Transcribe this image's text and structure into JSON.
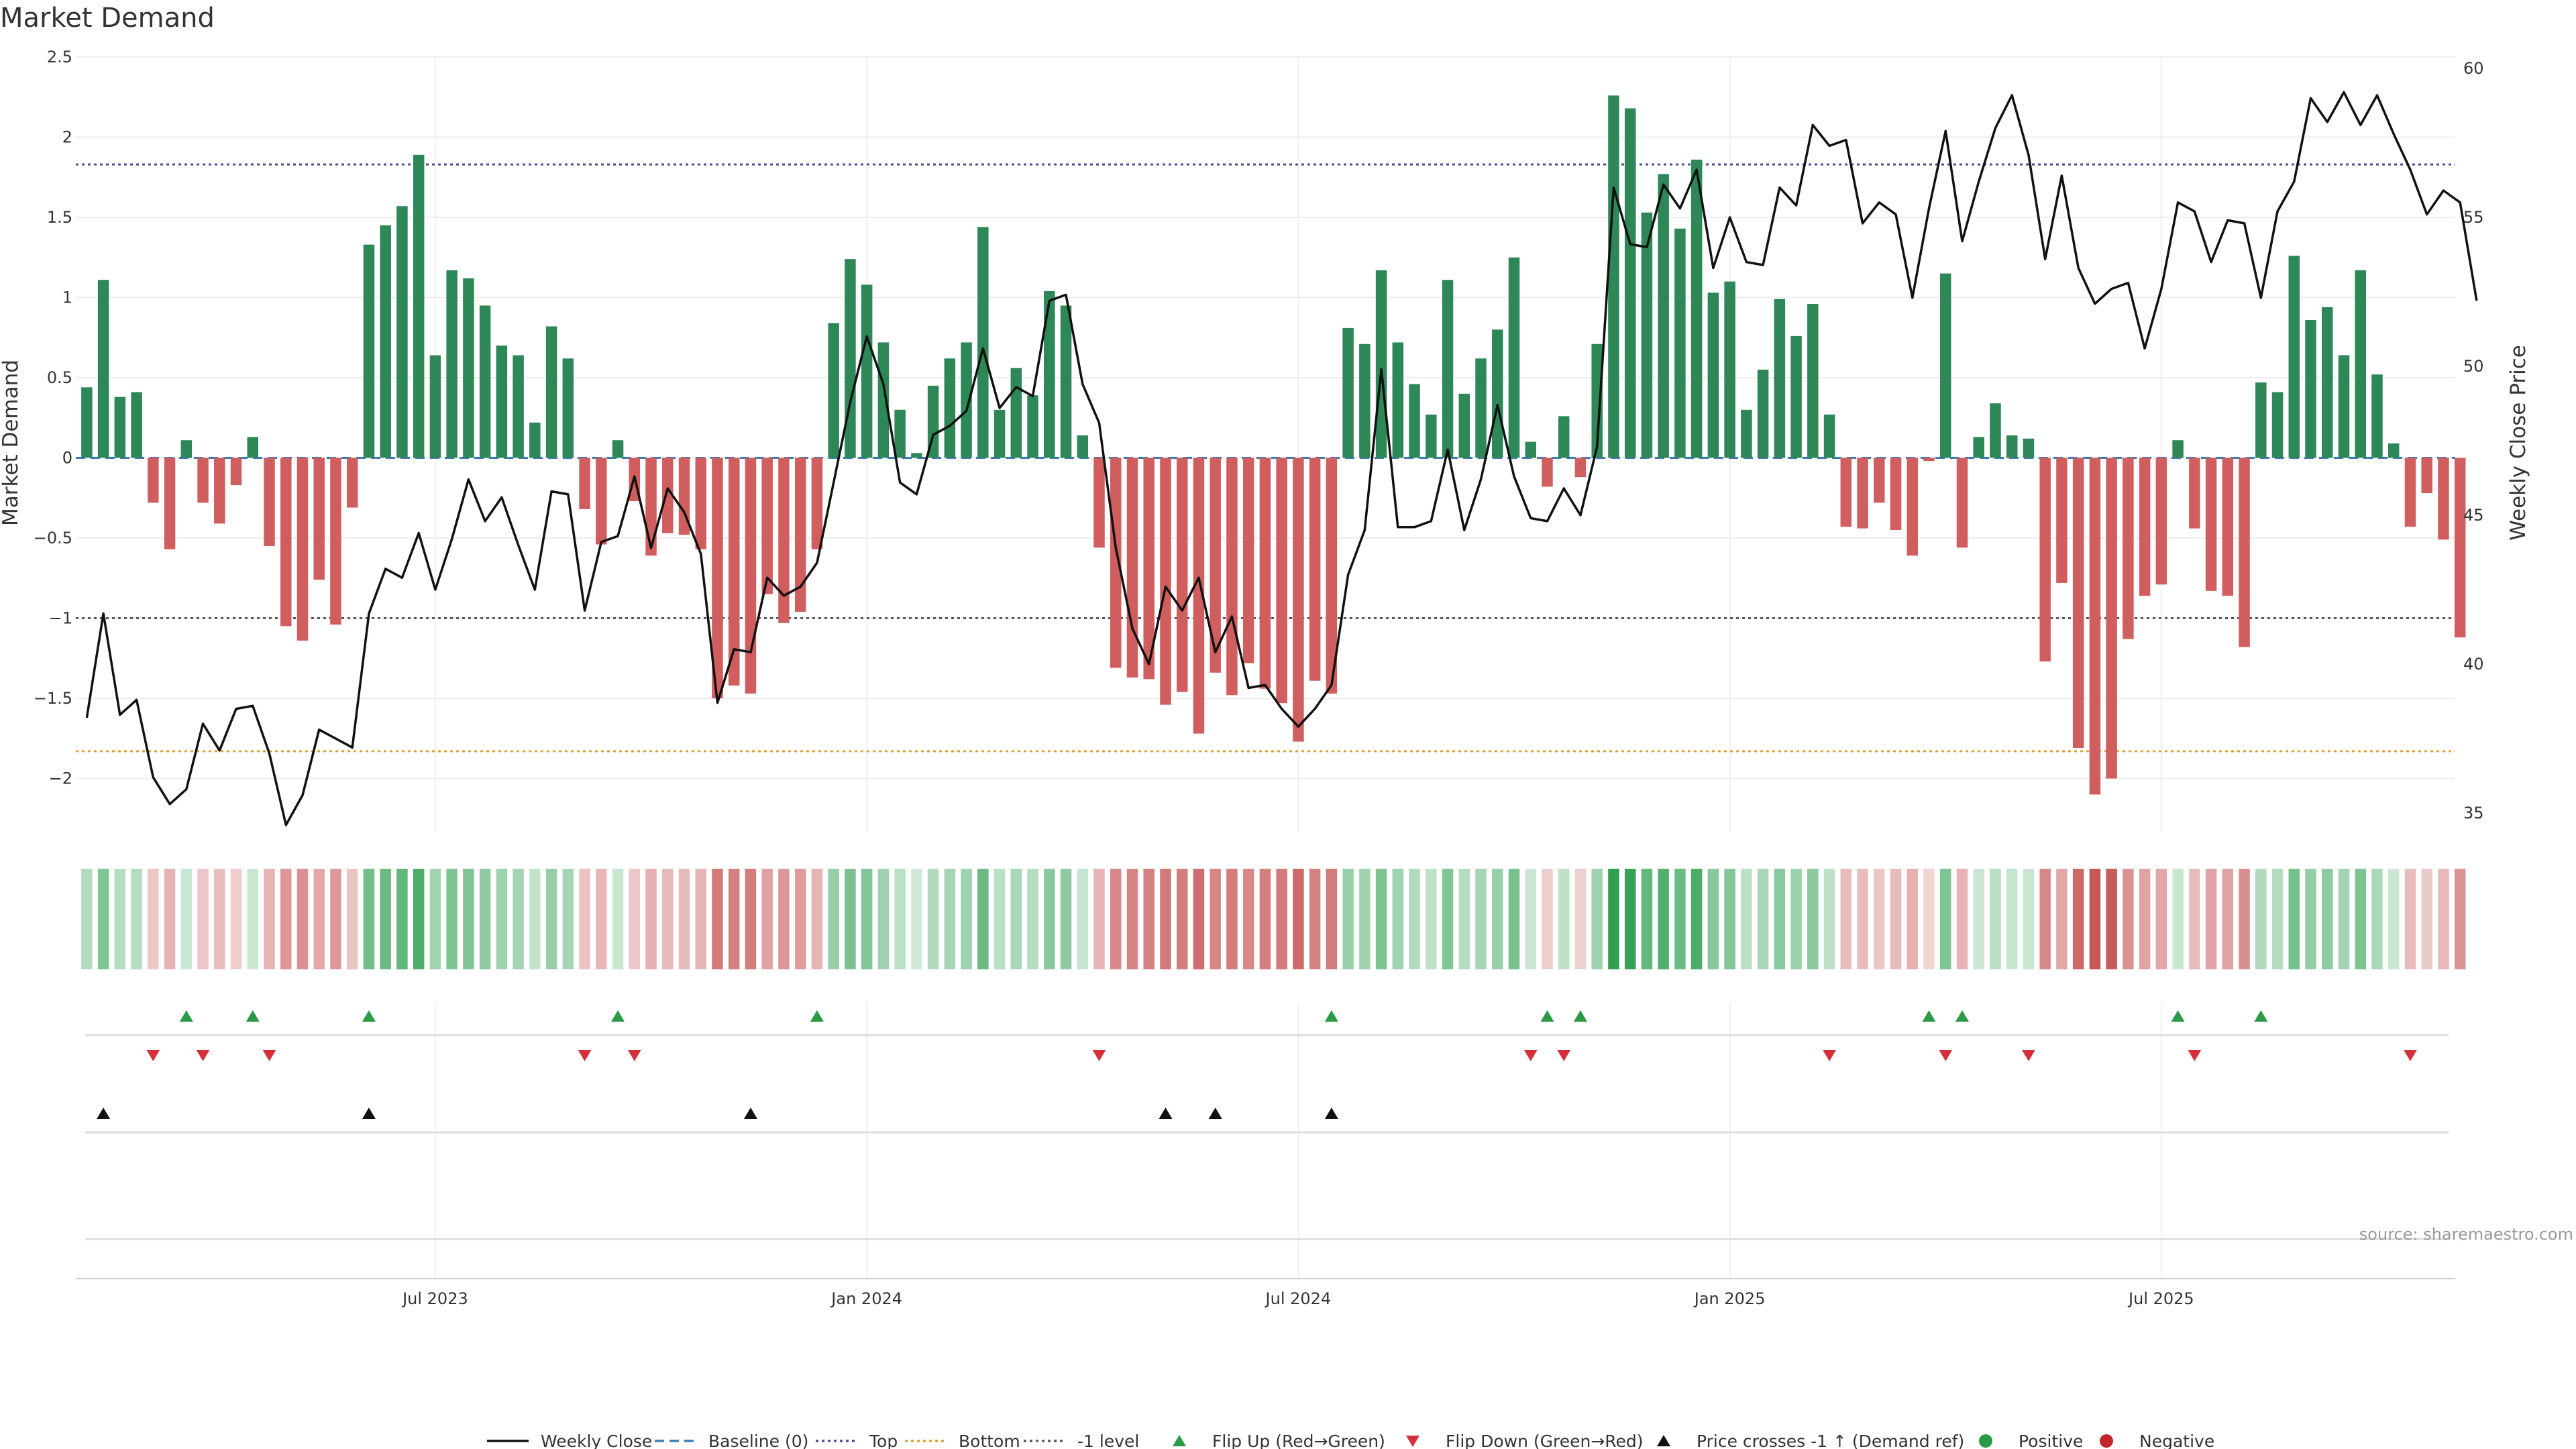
{
  "chart_data": {
    "type": "bar",
    "title": "Market Demand",
    "ylabel_left": "Market Demand",
    "ylabel_right": "Weekly Close Price",
    "ylim_left": [
      -2.35,
      2.5
    ],
    "ylim_right": [
      34.5,
      61
    ],
    "y_ticks_left": [
      2.5,
      2,
      1.5,
      1,
      0.5,
      0,
      -0.5,
      -1,
      -1.5,
      -2
    ],
    "y_ticks_left_labels": [
      "2.5",
      "2",
      "1.5",
      "1",
      "0.5",
      "0",
      "−0.5",
      "−1",
      "−1.5",
      "−2"
    ],
    "y_ticks_right": [
      60,
      55,
      50,
      45,
      40,
      35
    ],
    "x_tick_labels": [
      "Jul 2023",
      "Jan 2024",
      "Jul 2024",
      "Jan 2025",
      "Jul 2025"
    ],
    "x_tick_weeks": [
      21.5,
      47.5,
      73.5,
      99.5,
      125.5
    ],
    "reference_lines": {
      "top": 1.83,
      "bottom": -1.83,
      "minus_one": -1,
      "baseline": 0
    },
    "grid": true,
    "weeks": 144,
    "demand": [
      0.44,
      1.11,
      0.38,
      0.41,
      -0.28,
      -0.57,
      0.11,
      -0.28,
      -0.41,
      -0.17,
      0.13,
      -0.55,
      -1.05,
      -1.14,
      -0.76,
      -1.04,
      -0.31,
      1.33,
      1.45,
      1.57,
      1.89,
      0.64,
      1.17,
      1.12,
      0.95,
      0.7,
      0.64,
      0.22,
      0.82,
      0.62,
      -0.32,
      -0.54,
      0.11,
      -0.27,
      -0.61,
      -0.47,
      -0.48,
      -0.57,
      -1.5,
      -1.42,
      -1.47,
      -0.85,
      -1.03,
      -0.96,
      -0.57,
      0.84,
      1.24,
      1.08,
      0.72,
      0.3,
      0.03,
      0.45,
      0.62,
      0.72,
      1.44,
      0.3,
      0.56,
      0.39,
      1.04,
      0.95,
      0.14,
      -0.56,
      -1.31,
      -1.37,
      -1.38,
      -1.54,
      -1.46,
      -1.72,
      -1.34,
      -1.48,
      -1.28,
      -1.44,
      -1.53,
      -1.77,
      -1.39,
      -1.47,
      0.81,
      0.71,
      1.17,
      0.72,
      0.46,
      0.27,
      1.11,
      0.4,
      0.62,
      0.8,
      1.25,
      0.1,
      -0.18,
      0.26,
      -0.12,
      0.71,
      2.26,
      2.18,
      1.53,
      1.77,
      1.43,
      1.86,
      1.03,
      1.1,
      0.3,
      0.55,
      0.99,
      0.76,
      0.96,
      0.27,
      -0.43,
      -0.44,
      -0.28,
      -0.45,
      -0.61,
      -0.02,
      1.15,
      -0.56,
      0.13,
      0.34,
      0.14,
      0.12,
      -1.27,
      -0.78,
      -1.81,
      -2.1,
      -2.0,
      -1.13,
      -0.86,
      -0.79,
      0.11,
      -0.44,
      -0.83,
      -0.86,
      -1.18,
      0.47,
      0.41,
      1.26,
      0.86,
      0.94,
      0.64,
      1.17,
      0.52,
      0.09,
      -0.43,
      -0.22,
      -0.51,
      -1.12
    ],
    "weekly_close": [
      38.2,
      41.7,
      38.3,
      38.8,
      36.2,
      35.3,
      35.8,
      38.0,
      37.1,
      38.5,
      38.6,
      37.0,
      34.6,
      35.6,
      37.8,
      37.5,
      37.2,
      41.7,
      43.2,
      42.9,
      44.4,
      42.5,
      44.2,
      46.2,
      44.8,
      45.6,
      44.0,
      42.5,
      45.8,
      45.7,
      41.8,
      44.1,
      44.3,
      46.3,
      43.9,
      45.9,
      45.1,
      43.7,
      38.7,
      40.5,
      40.4,
      42.9,
      42.3,
      42.6,
      43.4,
      46.1,
      48.8,
      51.0,
      49.4,
      46.1,
      45.7,
      47.7,
      48.0,
      48.5,
      50.6,
      48.6,
      49.3,
      49.0,
      52.2,
      52.4,
      49.4,
      48.1,
      43.9,
      41.2,
      40.0,
      42.6,
      41.8,
      42.9,
      40.4,
      41.6,
      39.2,
      39.3,
      38.5,
      37.9,
      38.5,
      39.3,
      43.0,
      44.5,
      49.9,
      44.6,
      44.6,
      44.8,
      47.2,
      44.5,
      46.2,
      48.7,
      46.3,
      44.9,
      44.8,
      45.9,
      45.0,
      47.3,
      56.0,
      54.1,
      54.0,
      56.1,
      55.3,
      56.6,
      53.3,
      55.0,
      53.5,
      53.4,
      56.0,
      55.4,
      58.1,
      57.4,
      57.6,
      54.8,
      55.5,
      55.1,
      52.3,
      55.3,
      57.9,
      54.2,
      56.2,
      58.0,
      59.1,
      57.1,
      53.6,
      56.4,
      53.3,
      52.1,
      52.6,
      52.8,
      50.6,
      52.6,
      55.5,
      55.2,
      53.5,
      54.9,
      54.8,
      52.3,
      55.2,
      56.2,
      59.0,
      58.2,
      59.2,
      58.1,
      59.1,
      57.8,
      56.6,
      55.1,
      55.9,
      55.5,
      52.2
    ]
  },
  "events": {
    "flip_up_weeks": [
      6,
      10,
      17,
      32,
      44,
      75,
      88,
      90,
      111,
      113,
      126,
      131
    ],
    "flip_down_weeks": [
      4,
      7,
      11,
      30,
      33,
      61,
      87,
      89,
      105,
      112,
      117,
      127,
      140
    ],
    "cross_up_weeks": [
      1,
      17,
      40,
      65,
      68,
      75
    ]
  },
  "legend": [
    {
      "label": "Weekly Close",
      "kind": "line-solid",
      "color": "#111111"
    },
    {
      "label": "Baseline (0)",
      "kind": "line-dashed",
      "color": "#3d7ab8"
    },
    {
      "label": "Top",
      "kind": "line-dotted",
      "color": "#4a4a99"
    },
    {
      "label": "Bottom",
      "kind": "line-dotted",
      "color": "#e0a030"
    },
    {
      "label": "-1 level",
      "kind": "line-dotted",
      "color": "#555566"
    },
    {
      "label": "Flip Up (Red→Green)",
      "kind": "tri-up",
      "color": "#2b9a44"
    },
    {
      "label": "Flip Down (Green→Red)",
      "kind": "tri-down",
      "color": "#d3303a"
    },
    {
      "label": "Price crosses -1 ↑ (Demand ref)",
      "kind": "tri-up",
      "color": "#111111"
    },
    {
      "label": "Positive",
      "kind": "dot",
      "color": "#2b9a44"
    },
    {
      "label": "Negative",
      "kind": "dot",
      "color": "#c1272d"
    }
  ],
  "source": "source: sharemaestro.com",
  "colors": {
    "positive_bar": "#2e8757",
    "negative_bar": "#d15e5e",
    "price_line": "#111111",
    "baseline": "#3d7ab8",
    "top_line": "#4a4a99",
    "bottom_line": "#e0a030",
    "minus_one_line": "#555566",
    "flip_up": "#2b9a44",
    "flip_down": "#d3303a",
    "cross_up": "#111111"
  }
}
